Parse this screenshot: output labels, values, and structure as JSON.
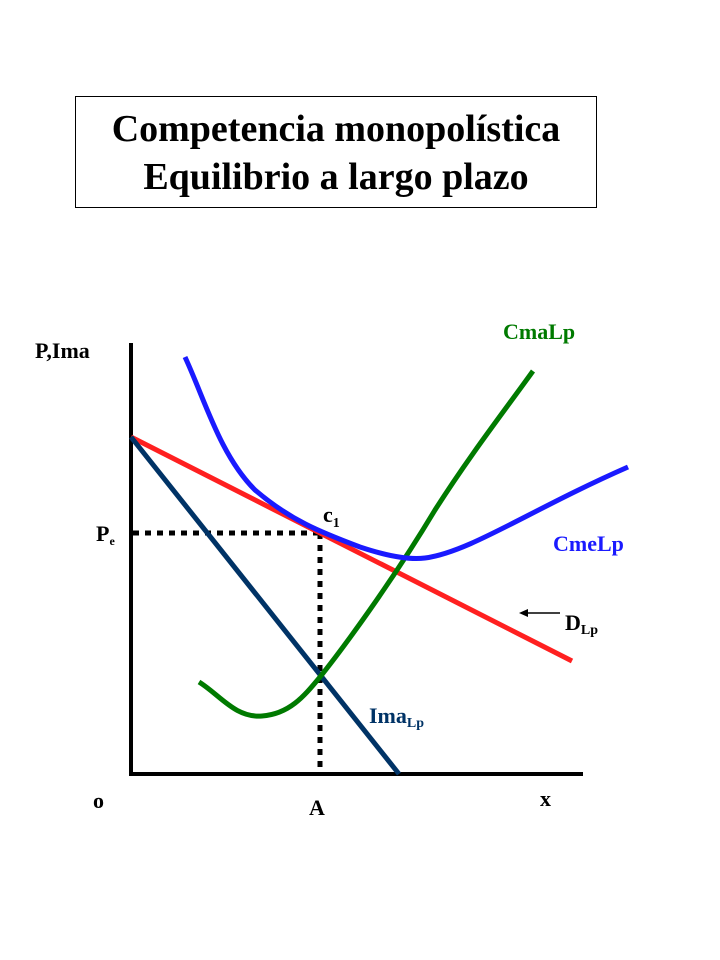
{
  "title": {
    "line1": "Competencia monopolística",
    "line2": "Equilibrio a largo plazo"
  },
  "axes": {
    "y_label": "P,Ima",
    "x_label": "x",
    "origin_label": "o",
    "price_label": "P",
    "price_sub": "e",
    "quantity_label": "A"
  },
  "curves": {
    "cma": {
      "label": "CmaLp",
      "color": "#007a00"
    },
    "cme": {
      "label": "CmeLp",
      "color": "#1a1aff"
    },
    "demand": {
      "label": "D",
      "sub": "Lp",
      "color": "#ff2020"
    },
    "ima": {
      "label": "Ima",
      "sub": "Lp",
      "color": "#003366"
    }
  },
  "point": {
    "label": "c",
    "sub": "1"
  }
}
